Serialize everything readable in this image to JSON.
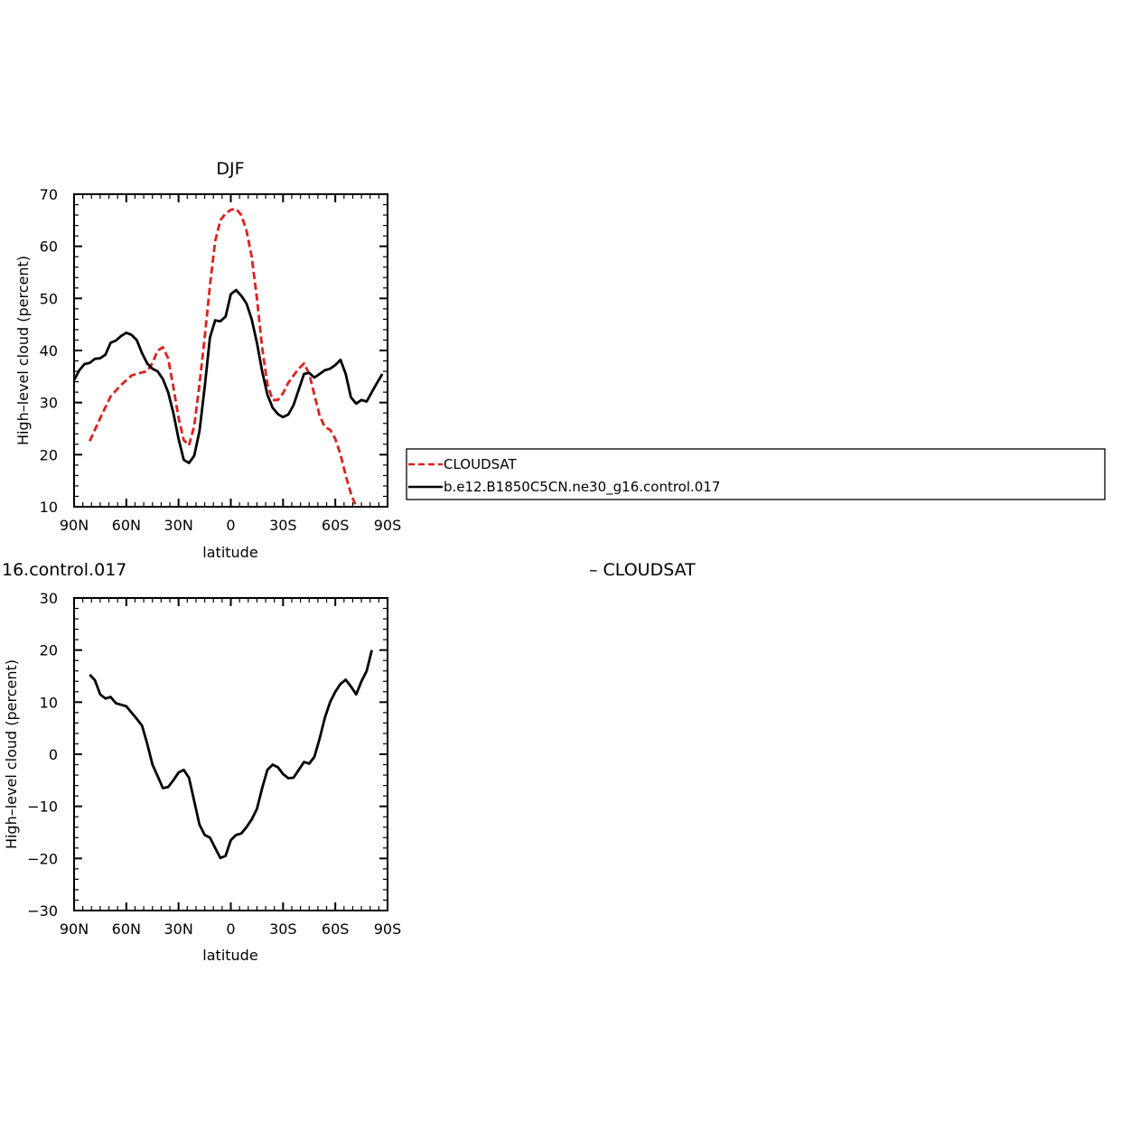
{
  "figure": {
    "top_legend": [
      {
        "label": "CLOUDSAT",
        "color": "#e0201c",
        "dash": true
      },
      {
        "label": "b.e12.B1850C5CN.ne30_g16.control.017",
        "color": "#000000",
        "dash": false
      }
    ],
    "lower_title_left": "16.control.017",
    "lower_title_right": "– CLOUDSAT"
  },
  "chart_data": [
    {
      "type": "line",
      "title": "DJF",
      "xlabel": "latitude",
      "ylabel": "High–level cloud (percent)",
      "xlim": [
        90,
        -90
      ],
      "ylim": [
        10,
        70
      ],
      "xticks": [
        90,
        60,
        30,
        0,
        -30,
        -60,
        -90
      ],
      "xtick_labels": [
        "90N",
        "60N",
        "30N",
        "0",
        "30S",
        "60S",
        "90S"
      ],
      "yticks": [
        10,
        20,
        30,
        40,
        50,
        60,
        70
      ],
      "ytick_labels": [
        "10",
        "20",
        "30",
        "40",
        "50",
        "60",
        "70"
      ],
      "series": [
        {
          "name": "CLOUDSAT",
          "color": "#e0201c",
          "dash": true,
          "points": [
            [
              81,
              22.6
            ],
            [
              75,
              27.0
            ],
            [
              69,
              31.2
            ],
            [
              63,
              33.4
            ],
            [
              57,
              35.2
            ],
            [
              51,
              35.8
            ],
            [
              48,
              36.0
            ],
            [
              45,
              37.6
            ],
            [
              42,
              40.0
            ],
            [
              39,
              40.6
            ],
            [
              36,
              38.5
            ],
            [
              33,
              33.0
            ],
            [
              30,
              27.0
            ],
            [
              27,
              22.8
            ],
            [
              24,
              21.8
            ],
            [
              21,
              25.5
            ],
            [
              18,
              33.5
            ],
            [
              15,
              42.5
            ],
            [
              12,
              52.5
            ],
            [
              9,
              61.0
            ],
            [
              6,
              65.0
            ],
            [
              3,
              66.3
            ],
            [
              0,
              67.0
            ],
            [
              -3,
              67.2
            ],
            [
              -6,
              66.0
            ],
            [
              -9,
              63.0
            ],
            [
              -12,
              58.0
            ],
            [
              -15,
              50.0
            ],
            [
              -18,
              40.5
            ],
            [
              -21,
              33.5
            ],
            [
              -24,
              30.5
            ],
            [
              -27,
              30.5
            ],
            [
              -30,
              31.8
            ],
            [
              -33,
              33.8
            ],
            [
              -36,
              35.2
            ],
            [
              -39,
              36.5
            ],
            [
              -42,
              37.5
            ],
            [
              -45,
              35.5
            ],
            [
              -48,
              31.5
            ],
            [
              -51,
              27.5
            ],
            [
              -54,
              25.3
            ],
            [
              -57,
              24.8
            ],
            [
              -60,
              23.0
            ],
            [
              -63,
              20.0
            ],
            [
              -66,
              16.0
            ],
            [
              -69,
              12.5
            ],
            [
              -72,
              10.0
            ]
          ]
        },
        {
          "name": "b.e12.B1850C5CN.ne30_g16.control.017",
          "color": "#000000",
          "dash": false,
          "points": [
            [
              90,
              34.3
            ],
            [
              87,
              36.2
            ],
            [
              84,
              37.4
            ],
            [
              81,
              37.6
            ],
            [
              78,
              38.4
            ],
            [
              75,
              38.5
            ],
            [
              72,
              39.2
            ],
            [
              69,
              41.5
            ],
            [
              66,
              41.9
            ],
            [
              63,
              42.8
            ],
            [
              60,
              43.4
            ],
            [
              57,
              43.0
            ],
            [
              54,
              42.0
            ],
            [
              51,
              39.5
            ],
            [
              48,
              37.5
            ],
            [
              45,
              36.5
            ],
            [
              42,
              36.0
            ],
            [
              39,
              34.5
            ],
            [
              36,
              32.0
            ],
            [
              33,
              28.0
            ],
            [
              30,
              23.0
            ],
            [
              27,
              19.0
            ],
            [
              24,
              18.4
            ],
            [
              21,
              19.8
            ],
            [
              18,
              24.5
            ],
            [
              15,
              33.0
            ],
            [
              12,
              42.5
            ],
            [
              9,
              45.8
            ],
            [
              6,
              45.6
            ],
            [
              3,
              46.5
            ],
            [
              0,
              50.8
            ],
            [
              -3,
              51.6
            ],
            [
              -6,
              50.5
            ],
            [
              -9,
              49.0
            ],
            [
              -12,
              46.0
            ],
            [
              -15,
              41.5
            ],
            [
              -18,
              36.0
            ],
            [
              -21,
              31.5
            ],
            [
              -24,
              29.0
            ],
            [
              -27,
              27.8
            ],
            [
              -30,
              27.2
            ],
            [
              -33,
              27.7
            ],
            [
              -36,
              29.5
            ],
            [
              -39,
              32.5
            ],
            [
              -42,
              35.5
            ],
            [
              -45,
              35.7
            ],
            [
              -48,
              34.8
            ],
            [
              -51,
              35.5
            ],
            [
              -54,
              36.2
            ],
            [
              -57,
              36.5
            ],
            [
              -60,
              37.2
            ],
            [
              -63,
              38.2
            ],
            [
              -66,
              35.5
            ],
            [
              -69,
              31.0
            ],
            [
              -72,
              29.8
            ],
            [
              -75,
              30.5
            ],
            [
              -78,
              30.2
            ],
            [
              -81,
              32.0
            ],
            [
              -84,
              33.8
            ],
            [
              -87,
              35.5
            ]
          ]
        }
      ]
    },
    {
      "type": "line",
      "title": "",
      "xlabel": "latitude",
      "ylabel": "High–level cloud (percent)",
      "xlim": [
        90,
        -90
      ],
      "ylim": [
        -30,
        30
      ],
      "xticks": [
        90,
        60,
        30,
        0,
        -30,
        -60,
        -90
      ],
      "xtick_labels": [
        "90N",
        "60N",
        "30N",
        "0",
        "30S",
        "60S",
        "90S"
      ],
      "yticks": [
        -30,
        -20,
        -10,
        0,
        10,
        20,
        30
      ],
      "ytick_labels": [
        "−30",
        "−20",
        "−10",
        "0",
        "10",
        "20",
        "30"
      ],
      "series": [
        {
          "name": "",
          "color": "#000000",
          "dash": false,
          "points": [
            [
              81,
              15.3
            ],
            [
              78,
              14.2
            ],
            [
              75,
              11.5
            ],
            [
              72,
              10.7
            ],
            [
              69,
              11.0
            ],
            [
              66,
              9.8
            ],
            [
              63,
              9.5
            ],
            [
              60,
              9.2
            ],
            [
              57,
              8.0
            ],
            [
              54,
              6.8
            ],
            [
              51,
              5.5
            ],
            [
              48,
              2.0
            ],
            [
              45,
              -2.0
            ],
            [
              42,
              -4.2
            ],
            [
              39,
              -6.5
            ],
            [
              36,
              -6.3
            ],
            [
              33,
              -5.0
            ],
            [
              30,
              -3.5
            ],
            [
              27,
              -3.0
            ],
            [
              24,
              -4.5
            ],
            [
              21,
              -9.0
            ],
            [
              18,
              -13.5
            ],
            [
              15,
              -15.5
            ],
            [
              12,
              -16.0
            ],
            [
              9,
              -18.0
            ],
            [
              6,
              -19.9
            ],
            [
              3,
              -19.5
            ],
            [
              0,
              -16.5
            ],
            [
              -3,
              -15.5
            ],
            [
              -6,
              -15.2
            ],
            [
              -9,
              -14.0
            ],
            [
              -12,
              -12.5
            ],
            [
              -15,
              -10.5
            ],
            [
              -18,
              -6.5
            ],
            [
              -21,
              -3.0
            ],
            [
              -24,
              -2.0
            ],
            [
              -27,
              -2.5
            ],
            [
              -30,
              -3.8
            ],
            [
              -33,
              -4.6
            ],
            [
              -36,
              -4.5
            ],
            [
              -39,
              -3.0
            ],
            [
              -42,
              -1.5
            ],
            [
              -45,
              -1.8
            ],
            [
              -48,
              -0.5
            ],
            [
              -51,
              3.0
            ],
            [
              -54,
              7.0
            ],
            [
              -57,
              10.0
            ],
            [
              -60,
              12.0
            ],
            [
              -63,
              13.5
            ],
            [
              -66,
              14.3
            ],
            [
              -69,
              13.0
            ],
            [
              -72,
              11.5
            ],
            [
              -75,
              14.0
            ],
            [
              -78,
              16.0
            ],
            [
              -81,
              20.0
            ]
          ]
        }
      ]
    }
  ]
}
